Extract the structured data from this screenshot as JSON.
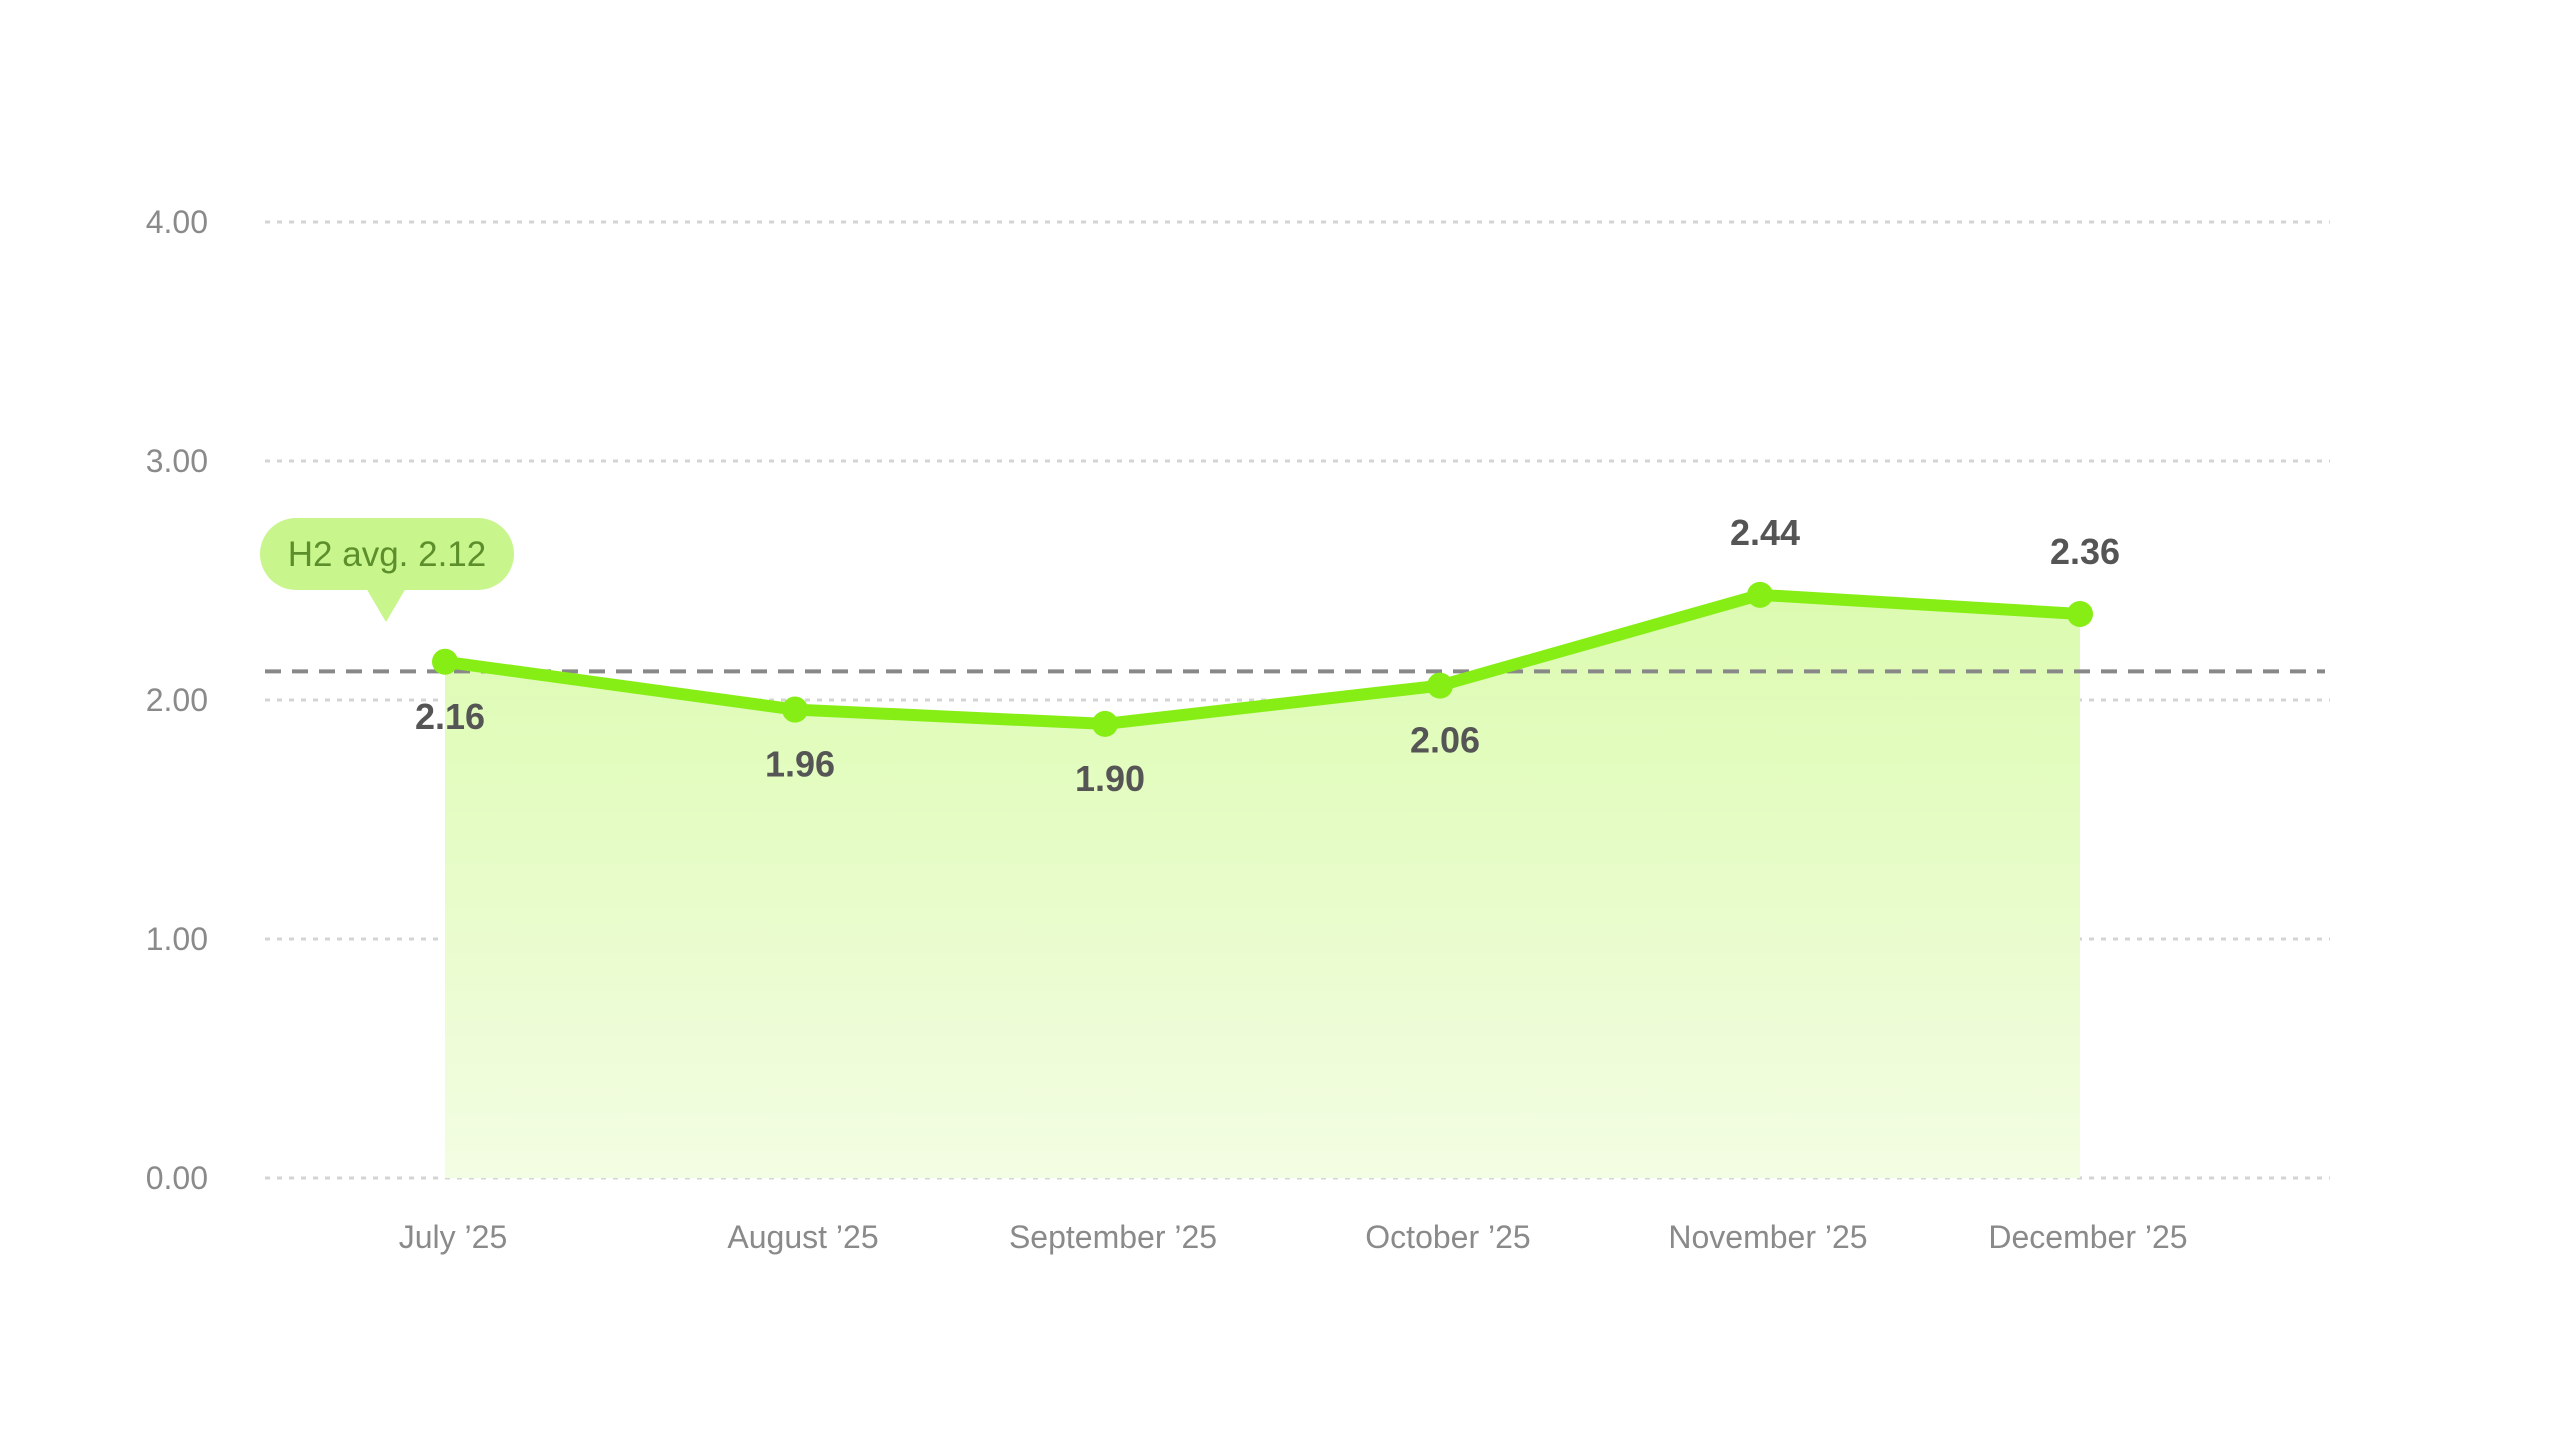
{
  "chart_data": {
    "type": "area",
    "categories": [
      "July ’25",
      "August ’25",
      "September ’25",
      "October ’25",
      "November ’25",
      "December ’25"
    ],
    "series": [
      {
        "values": [
          2.16,
          1.96,
          1.9,
          2.06,
          2.44,
          2.36
        ]
      }
    ],
    "data_labels": [
      "2.16",
      "1.96",
      "1.90",
      "2.06",
      "2.44",
      "2.36"
    ],
    "y_ticks": [
      "0.00",
      "1.00",
      "2.00",
      "3.00",
      "4.00"
    ],
    "ylim": [
      0,
      4
    ],
    "grid": true,
    "average": {
      "value": 2.12,
      "label": "H2 avg. 2.12"
    },
    "colors": {
      "line": "#86ee14",
      "area_top": "#dcfbb0",
      "area_bottom": "#f3fde3",
      "grid": "#d4d4d4",
      "average_line": "#888888",
      "callout_bg": "#c8f58c",
      "callout_text": "#5c8f2c"
    }
  }
}
